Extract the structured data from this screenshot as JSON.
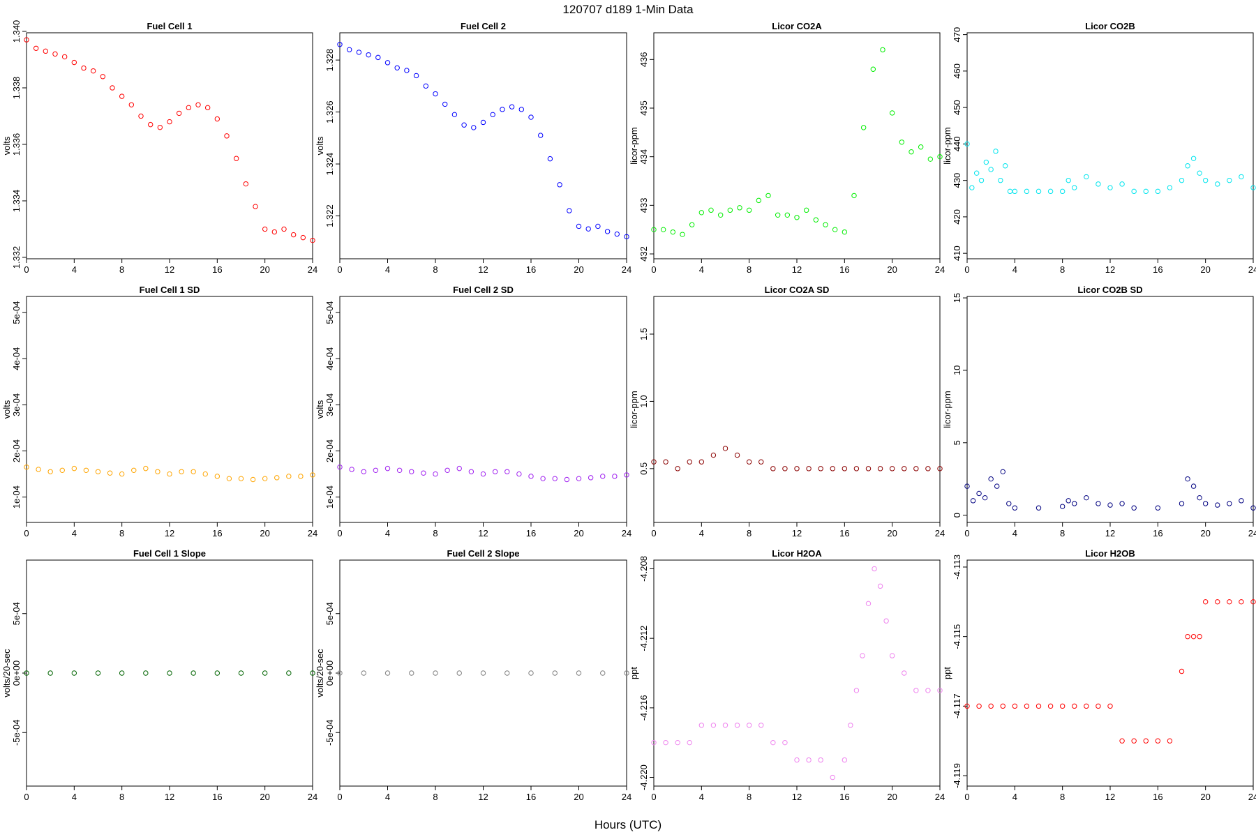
{
  "figure": {
    "title": "120707   d189   1-Min Data",
    "xlabel": "Hours (UTC)"
  },
  "chart_data": [
    {
      "type": "scatter",
      "title": "Fuel Cell 1",
      "ylabel": "volts",
      "xlabel": "",
      "color": "#ff0000",
      "xlim": [
        0,
        24
      ],
      "ylim": [
        1.33195,
        1.33995
      ],
      "xticks": [
        0,
        4,
        8,
        12,
        16,
        20,
        24
      ],
      "xtick_labels": [
        "0",
        "4",
        "8",
        "12",
        "16",
        "20",
        "24"
      ],
      "yticks": [
        1.332,
        1.334,
        1.336,
        1.338,
        1.34
      ],
      "ytick_labels": [
        "1.332",
        "1.334",
        "1.336",
        "1.338",
        "1.340"
      ],
      "x": [
        0.0,
        0.8,
        1.6,
        2.4,
        3.2,
        4.0,
        4.8,
        5.6,
        6.4,
        7.2,
        8.0,
        8.8,
        9.6,
        10.4,
        11.2,
        12.0,
        12.8,
        13.6,
        14.4,
        15.2,
        16.0,
        16.8,
        17.6,
        18.4,
        19.2,
        20.0,
        20.8,
        21.6,
        22.4,
        23.2,
        24.0
      ],
      "y": [
        1.3397,
        1.3394,
        1.3393,
        1.3392,
        1.3391,
        1.3389,
        1.3387,
        1.3386,
        1.3384,
        1.338,
        1.3377,
        1.3374,
        1.337,
        1.3367,
        1.3366,
        1.3368,
        1.3371,
        1.3373,
        1.3374,
        1.3373,
        1.3369,
        1.3363,
        1.3355,
        1.3346,
        1.3338,
        1.333,
        1.3329,
        1.333,
        1.3328,
        1.3327,
        1.3326
      ]
    },
    {
      "type": "scatter",
      "title": "Fuel Cell 2",
      "ylabel": "volts",
      "xlabel": "",
      "color": "#0000ff",
      "xlim": [
        0,
        24
      ],
      "ylim": [
        1.32035,
        1.32905
      ],
      "xticks": [
        0,
        4,
        8,
        12,
        16,
        20,
        24
      ],
      "xtick_labels": [
        "0",
        "4",
        "8",
        "12",
        "16",
        "20",
        "24"
      ],
      "yticks": [
        1.322,
        1.324,
        1.326,
        1.328
      ],
      "ytick_labels": [
        "1.322",
        "1.324",
        "1.326",
        "1.328"
      ],
      "x": [
        0.0,
        0.8,
        1.6,
        2.4,
        3.2,
        4.0,
        4.8,
        5.6,
        6.4,
        7.2,
        8.0,
        8.8,
        9.6,
        10.4,
        11.2,
        12.0,
        12.8,
        13.6,
        14.4,
        15.2,
        16.0,
        16.8,
        17.6,
        18.4,
        19.2,
        20.0,
        20.8,
        21.6,
        22.4,
        23.2,
        24.0
      ],
      "y": [
        1.3286,
        1.3284,
        1.3283,
        1.3282,
        1.3281,
        1.3279,
        1.3277,
        1.3276,
        1.3274,
        1.327,
        1.3267,
        1.3263,
        1.3259,
        1.3255,
        1.3254,
        1.3256,
        1.3259,
        1.3261,
        1.3262,
        1.3261,
        1.3258,
        1.3251,
        1.3242,
        1.3232,
        1.3222,
        1.3216,
        1.3215,
        1.3216,
        1.3214,
        1.3213,
        1.3212
      ]
    },
    {
      "type": "scatter",
      "title": "Licor CO2A",
      "ylabel": "licor-ppm",
      "xlabel": "",
      "color": "#00ee00",
      "xlim": [
        0,
        24
      ],
      "ylim": [
        431.9,
        436.55
      ],
      "xticks": [
        0,
        4,
        8,
        12,
        16,
        20,
        24
      ],
      "xtick_labels": [
        "0",
        "4",
        "8",
        "12",
        "16",
        "20",
        "24"
      ],
      "yticks": [
        432,
        433,
        434,
        435,
        436
      ],
      "ytick_labels": [
        "432",
        "433",
        "434",
        "435",
        "436"
      ],
      "x": [
        0.0,
        0.8,
        1.6,
        2.4,
        3.2,
        4.0,
        4.8,
        5.6,
        6.4,
        7.2,
        8.0,
        8.8,
        9.6,
        10.4,
        11.2,
        12.0,
        12.8,
        13.6,
        14.4,
        15.2,
        16.0,
        16.8,
        17.6,
        18.4,
        19.2,
        20.0,
        20.8,
        21.6,
        22.4,
        23.2,
        24.0
      ],
      "y": [
        432.5,
        432.5,
        432.45,
        432.4,
        432.6,
        432.85,
        432.9,
        432.8,
        432.9,
        432.95,
        432.9,
        433.1,
        433.2,
        432.8,
        432.8,
        432.75,
        432.9,
        432.7,
        432.6,
        432.5,
        432.45,
        433.2,
        434.6,
        435.8,
        436.2,
        434.9,
        434.3,
        434.1,
        434.2,
        433.95,
        434.0
      ]
    },
    {
      "type": "scatter",
      "title": "Licor CO2B",
      "ylabel": "licor-ppm",
      "xlabel": "",
      "color": "#00e5ee",
      "xlim": [
        0,
        24
      ],
      "ylim": [
        408.5,
        470.5
      ],
      "xticks": [
        0,
        4,
        8,
        12,
        16,
        20,
        24
      ],
      "xtick_labels": [
        "0",
        "4",
        "8",
        "12",
        "16",
        "20",
        "24"
      ],
      "yticks": [
        410,
        420,
        430,
        440,
        450,
        460,
        470
      ],
      "ytick_labels": [
        "410",
        "420",
        "430",
        "440",
        "450",
        "460",
        "470"
      ],
      "x": [
        0.0,
        0.4,
        0.8,
        1.2,
        1.6,
        2.0,
        2.4,
        2.8,
        3.2,
        3.6,
        4.0,
        5.0,
        6.0,
        7.0,
        8.0,
        8.5,
        9.0,
        10.0,
        11.0,
        12.0,
        13.0,
        14.0,
        15.0,
        16.0,
        17.0,
        18.0,
        18.5,
        19.0,
        19.5,
        20.0,
        21.0,
        22.0,
        23.0,
        24.0
      ],
      "y": [
        440,
        428,
        432,
        430,
        435,
        433,
        438,
        430,
        434,
        427,
        427,
        427,
        427,
        427,
        427,
        430,
        428,
        431,
        429,
        428,
        429,
        427,
        427,
        427,
        428,
        430,
        434,
        436,
        432,
        430,
        429,
        430,
        431,
        428
      ]
    },
    {
      "type": "scatter",
      "title": "Fuel Cell 1 SD",
      "ylabel": "volts",
      "xlabel": "",
      "color": "#ffa500",
      "xlim": [
        0,
        24
      ],
      "ylim": [
        4.5e-05,
        0.000535
      ],
      "xticks": [
        0,
        4,
        8,
        12,
        16,
        20,
        24
      ],
      "xtick_labels": [
        "0",
        "4",
        "8",
        "12",
        "16",
        "20",
        "24"
      ],
      "yticks": [
        0.0001,
        0.0002,
        0.0003,
        0.0004,
        0.0005
      ],
      "ytick_labels": [
        "1e-04",
        "2e-04",
        "3e-04",
        "4e-04",
        "5e-04"
      ],
      "x": [
        0.0,
        1.0,
        2.0,
        3.0,
        4.0,
        5.0,
        6.0,
        7.0,
        8.0,
        9.0,
        10.0,
        11.0,
        12.0,
        13.0,
        14.0,
        15.0,
        16.0,
        17.0,
        18.0,
        19.0,
        20.0,
        21.0,
        22.0,
        23.0,
        24.0
      ],
      "y": [
        0.000165,
        0.00016,
        0.000155,
        0.000158,
        0.000162,
        0.000158,
        0.000155,
        0.000152,
        0.00015,
        0.000158,
        0.000162,
        0.000155,
        0.00015,
        0.000155,
        0.000155,
        0.00015,
        0.000145,
        0.00014,
        0.00014,
        0.000138,
        0.00014,
        0.000142,
        0.000145,
        0.000145,
        0.000148
      ]
    },
    {
      "type": "scatter",
      "title": "Fuel Cell 2 SD",
      "ylabel": "volts",
      "xlabel": "",
      "color": "#a020f0",
      "xlim": [
        0,
        24
      ],
      "ylim": [
        4.5e-05,
        0.000535
      ],
      "xticks": [
        0,
        4,
        8,
        12,
        16,
        20,
        24
      ],
      "xtick_labels": [
        "0",
        "4",
        "8",
        "12",
        "16",
        "20",
        "24"
      ],
      "yticks": [
        0.0001,
        0.0002,
        0.0003,
        0.0004,
        0.0005
      ],
      "ytick_labels": [
        "1e-04",
        "2e-04",
        "3e-04",
        "4e-04",
        "5e-04"
      ],
      "x": [
        0.0,
        1.0,
        2.0,
        3.0,
        4.0,
        5.0,
        6.0,
        7.0,
        8.0,
        9.0,
        10.0,
        11.0,
        12.0,
        13.0,
        14.0,
        15.0,
        16.0,
        17.0,
        18.0,
        19.0,
        20.0,
        21.0,
        22.0,
        23.0,
        24.0
      ],
      "y": [
        0.000165,
        0.00016,
        0.000155,
        0.000158,
        0.000162,
        0.000158,
        0.000155,
        0.000152,
        0.00015,
        0.000158,
        0.000162,
        0.000155,
        0.00015,
        0.000155,
        0.000155,
        0.00015,
        0.000145,
        0.00014,
        0.00014,
        0.000138,
        0.00014,
        0.000142,
        0.000145,
        0.000145,
        0.000148
      ]
    },
    {
      "type": "scatter",
      "title": "Licor CO2A SD",
      "ylabel": "licor-ppm",
      "xlabel": "",
      "color": "#8b0000",
      "xlim": [
        0,
        24
      ],
      "ylim": [
        0.1,
        1.78
      ],
      "xticks": [
        0,
        4,
        8,
        12,
        16,
        20,
        24
      ],
      "xtick_labels": [
        "0",
        "4",
        "8",
        "12",
        "16",
        "20",
        "24"
      ],
      "yticks": [
        0.5,
        1.0,
        1.5
      ],
      "ytick_labels": [
        "0.5",
        "1.0",
        "1.5"
      ],
      "x": [
        0.0,
        1.0,
        2.0,
        3.0,
        4.0,
        5.0,
        6.0,
        7.0,
        8.0,
        9.0,
        10.0,
        11.0,
        12.0,
        13.0,
        14.0,
        15.0,
        16.0,
        17.0,
        18.0,
        19.0,
        20.0,
        21.0,
        22.0,
        23.0,
        24.0
      ],
      "y": [
        0.55,
        0.55,
        0.5,
        0.55,
        0.55,
        0.6,
        0.65,
        0.6,
        0.55,
        0.55,
        0.5,
        0.5,
        0.5,
        0.5,
        0.5,
        0.5,
        0.5,
        0.5,
        0.5,
        0.5,
        0.5,
        0.5,
        0.5,
        0.5,
        0.5
      ]
    },
    {
      "type": "scatter",
      "title": "Licor CO2B SD",
      "ylabel": "licor-ppm",
      "xlabel": "",
      "color": "#000080",
      "xlim": [
        0,
        24
      ],
      "ylim": [
        -0.5,
        15.1
      ],
      "xticks": [
        0,
        4,
        8,
        12,
        16,
        20,
        24
      ],
      "xtick_labels": [
        "0",
        "4",
        "8",
        "12",
        "16",
        "20",
        "24"
      ],
      "yticks": [
        0,
        5,
        10,
        15
      ],
      "ytick_labels": [
        "0",
        "5",
        "10",
        "15"
      ],
      "x": [
        0.0,
        0.5,
        1.0,
        1.5,
        2.0,
        2.5,
        3.0,
        3.5,
        4.0,
        6.0,
        8.0,
        8.5,
        9.0,
        10.0,
        11.0,
        12.0,
        13.0,
        14.0,
        16.0,
        18.0,
        18.5,
        19.0,
        19.5,
        20.0,
        21.0,
        22.0,
        23.0,
        24.0
      ],
      "y": [
        2.0,
        1.0,
        1.5,
        1.2,
        2.5,
        2.0,
        3.0,
        0.8,
        0.5,
        0.5,
        0.6,
        1.0,
        0.8,
        1.2,
        0.8,
        0.7,
        0.8,
        0.5,
        0.5,
        0.8,
        2.5,
        2.0,
        1.2,
        0.8,
        0.7,
        0.8,
        1.0,
        0.5
      ]
    },
    {
      "type": "scatter",
      "title": "Fuel Cell 1 Slope",
      "ylabel": "volts/20-sec",
      "xlabel": "",
      "color": "#006400",
      "xlim": [
        0,
        24
      ],
      "ylim": [
        -0.00095,
        0.00095
      ],
      "xticks": [
        0,
        4,
        8,
        12,
        16,
        20,
        24
      ],
      "xtick_labels": [
        "0",
        "4",
        "8",
        "12",
        "16",
        "20",
        "24"
      ],
      "yticks": [
        -0.0005,
        0,
        0.0005
      ],
      "ytick_labels": [
        "-5e-04",
        "0e+00",
        "5e-04"
      ],
      "x": [
        0.0,
        2.0,
        4.0,
        6.0,
        8.0,
        10.0,
        12.0,
        14.0,
        16.0,
        18.0,
        20.0,
        22.0,
        24.0
      ],
      "y": [
        0.0,
        0.0,
        0.0,
        0.0,
        0.0,
        0.0,
        0.0,
        0.0,
        0.0,
        0.0,
        0.0,
        0.0,
        0.0
      ]
    },
    {
      "type": "scatter",
      "title": "Fuel Cell 2 Slope",
      "ylabel": "volts/20-sec",
      "xlabel": "",
      "color": "#808080",
      "xlim": [
        0,
        24
      ],
      "ylim": [
        -0.00095,
        0.00095
      ],
      "xticks": [
        0,
        4,
        8,
        12,
        16,
        20,
        24
      ],
      "xtick_labels": [
        "0",
        "4",
        "8",
        "12",
        "16",
        "20",
        "24"
      ],
      "yticks": [
        -0.0005,
        0,
        0.0005
      ],
      "ytick_labels": [
        "-5e-04",
        "0e+00",
        "5e-04"
      ],
      "x": [
        0.0,
        2.0,
        4.0,
        6.0,
        8.0,
        10.0,
        12.0,
        14.0,
        16.0,
        18.0,
        20.0,
        22.0,
        24.0
      ],
      "y": [
        0.0,
        0.0,
        0.0,
        0.0,
        0.0,
        0.0,
        0.0,
        0.0,
        0.0,
        0.0,
        0.0,
        0.0,
        0.0
      ]
    },
    {
      "type": "scatter",
      "title": "Licor H2OA",
      "ylabel": "ppt",
      "xlabel": "",
      "color": "#ee82ee",
      "xlim": [
        0,
        24
      ],
      "ylim": [
        -4.2205,
        -4.2075
      ],
      "xticks": [
        0,
        4,
        8,
        12,
        16,
        20,
        24
      ],
      "xtick_labels": [
        "0",
        "4",
        "8",
        "12",
        "16",
        "20",
        "24"
      ],
      "yticks": [
        -4.22,
        -4.216,
        -4.212,
        -4.208
      ],
      "ytick_labels": [
        "-4.220",
        "-4.216",
        "-4.212",
        "-4.208"
      ],
      "x": [
        0.0,
        1.0,
        2.0,
        3.0,
        4.0,
        5.0,
        6.0,
        7.0,
        8.0,
        9.0,
        10.0,
        11.0,
        12.0,
        13.0,
        14.0,
        15.0,
        16.0,
        16.5,
        17.0,
        17.5,
        18.0,
        18.5,
        19.0,
        19.5,
        20.0,
        21.0,
        22.0,
        23.0,
        24.0
      ],
      "y": [
        -4.218,
        -4.218,
        -4.218,
        -4.218,
        -4.217,
        -4.217,
        -4.217,
        -4.217,
        -4.217,
        -4.217,
        -4.218,
        -4.218,
        -4.219,
        -4.219,
        -4.219,
        -4.22,
        -4.219,
        -4.217,
        -4.215,
        -4.213,
        -4.21,
        -4.208,
        -4.209,
        -4.211,
        -4.213,
        -4.214,
        -4.215,
        -4.215,
        -4.215
      ]
    },
    {
      "type": "scatter",
      "title": "Licor H2OB",
      "ylabel": "ppt",
      "xlabel": "",
      "color": "#ff0000",
      "xlim": [
        0,
        24
      ],
      "ylim": [
        -4.1193,
        -4.1128
      ],
      "xticks": [
        0,
        4,
        8,
        12,
        16,
        20,
        24
      ],
      "xtick_labels": [
        "0",
        "4",
        "8",
        "12",
        "16",
        "20",
        "24"
      ],
      "yticks": [
        -4.119,
        -4.117,
        -4.115,
        -4.113
      ],
      "ytick_labels": [
        "-4.119",
        "-4.117",
        "-4.115",
        "-4.113"
      ],
      "x": [
        0.0,
        1.0,
        2.0,
        3.0,
        4.0,
        5.0,
        6.0,
        7.0,
        8.0,
        9.0,
        10.0,
        11.0,
        12.0,
        13.0,
        14.0,
        15.0,
        16.0,
        17.0,
        18.0,
        18.5,
        19.0,
        19.5,
        20.0,
        21.0,
        22.0,
        23.0,
        24.0
      ],
      "y": [
        -4.117,
        -4.117,
        -4.117,
        -4.117,
        -4.117,
        -4.117,
        -4.117,
        -4.117,
        -4.117,
        -4.117,
        -4.117,
        -4.117,
        -4.117,
        -4.118,
        -4.118,
        -4.118,
        -4.118,
        -4.118,
        -4.116,
        -4.115,
        -4.115,
        -4.115,
        -4.114,
        -4.114,
        -4.114,
        -4.114,
        -4.114
      ]
    }
  ]
}
